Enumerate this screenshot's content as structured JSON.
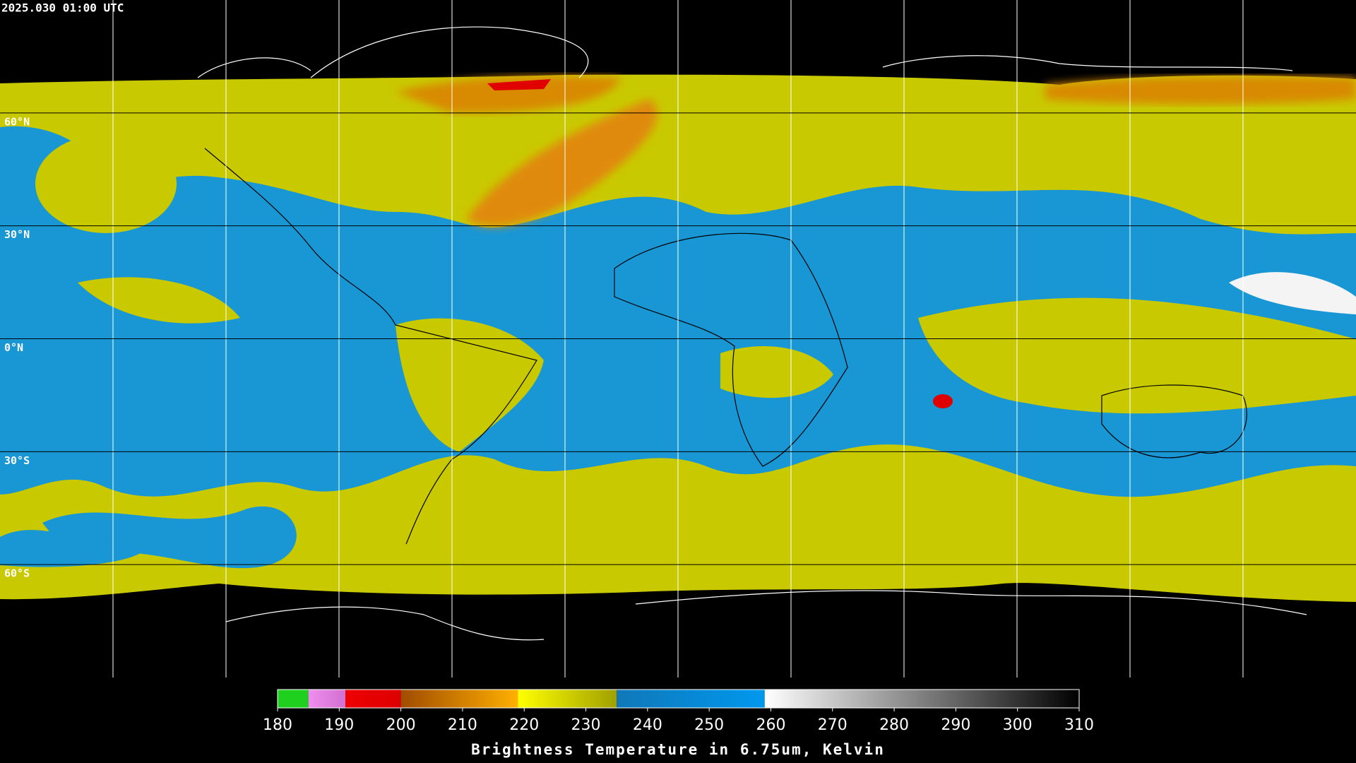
{
  "timestamp": "2025.030 01:00 UTC",
  "latitudes": [
    {
      "value": 60,
      "label": "60°N"
    },
    {
      "value": 30,
      "label": "30°N"
    },
    {
      "value": 0,
      "label": "0°N"
    },
    {
      "value": -30,
      "label": "30°S"
    },
    {
      "value": -60,
      "label": "60°S"
    }
  ],
  "colorbar": {
    "title": "Brightness Temperature in 6.75um, Kelvin",
    "range": [
      180,
      310
    ],
    "ticks": [
      180,
      190,
      200,
      210,
      220,
      230,
      240,
      250,
      260,
      270,
      280,
      290,
      300,
      310
    ],
    "segments": [
      {
        "from": 180,
        "to": 185,
        "colors": [
          "#1fd01f",
          "#1fd01f"
        ]
      },
      {
        "from": 185,
        "to": 191,
        "colors": [
          "#f08ef0",
          "#d070d0"
        ]
      },
      {
        "from": 191,
        "to": 200,
        "colors": [
          "#ee0000",
          "#dd0000"
        ]
      },
      {
        "from": 200,
        "to": 219,
        "colors": [
          "#a04c00",
          "#ffb000"
        ]
      },
      {
        "from": 219,
        "to": 235,
        "colors": [
          "#ffff00",
          "#a0a000"
        ]
      },
      {
        "from": 235,
        "to": 259,
        "colors": [
          "#1078b8",
          "#0098ee"
        ]
      },
      {
        "from": 259,
        "to": 310,
        "colors": [
          "#ffffff",
          "#000000"
        ]
      }
    ]
  }
}
